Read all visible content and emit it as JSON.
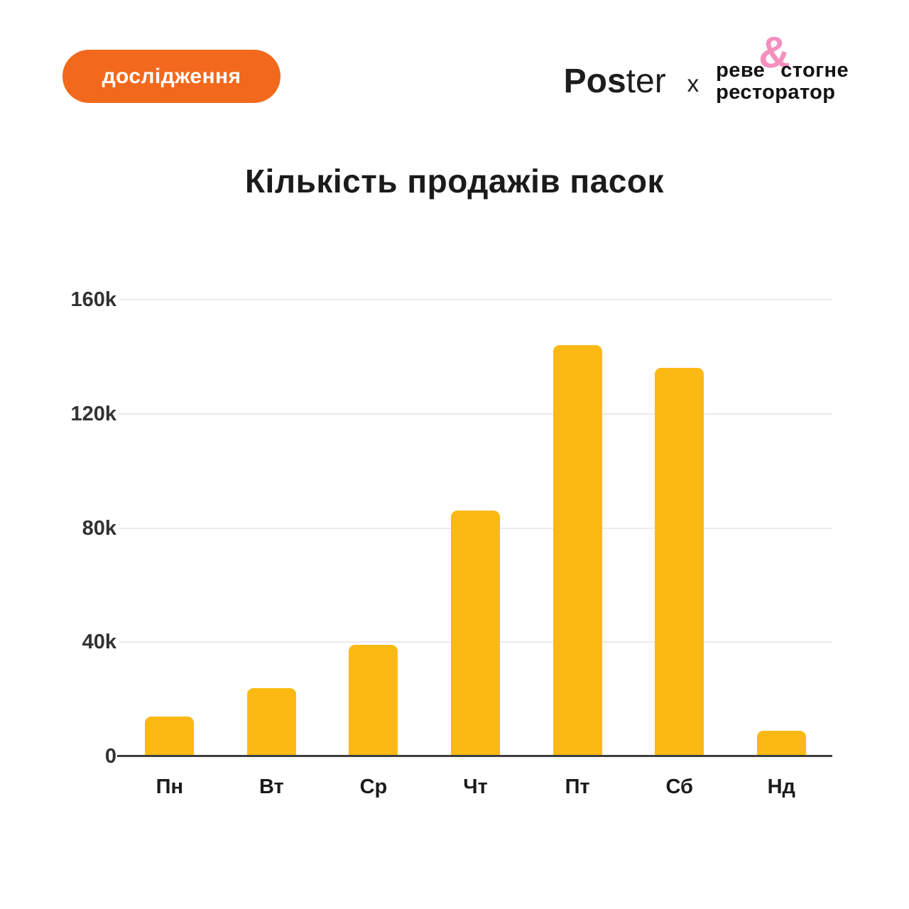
{
  "header": {
    "badge": {
      "label": "дослідження",
      "bg_color": "#F2691D",
      "text_color": "#FFFFFF"
    },
    "poster_logo": {
      "bold_part": "Pos",
      "light_part": "ter"
    },
    "collab_separator": "x",
    "partner_logo": {
      "line1_left": "реве",
      "amp": "&",
      "line1_right": "стогне",
      "line2": "ресторатор",
      "amp_color": "#F490BE"
    }
  },
  "chart_data": {
    "type": "bar",
    "title": "Кількість продажів пасок",
    "categories": [
      "Пн",
      "Вт",
      "Ср",
      "Чт",
      "Пт",
      "Сб",
      "Нд"
    ],
    "values": [
      14000,
      24000,
      39000,
      86000,
      144000,
      136000,
      9000
    ],
    "xlabel": "",
    "ylabel": "",
    "ylim": [
      0,
      160000
    ],
    "yticks": [
      {
        "value": 160000,
        "label": "160k"
      },
      {
        "value": 120000,
        "label": "120k"
      },
      {
        "value": 80000,
        "label": "80k"
      },
      {
        "value": 40000,
        "label": "40k"
      },
      {
        "value": 0,
        "label": "0"
      }
    ],
    "grid": true,
    "legend": false,
    "bar_color": "#FCB914",
    "gridline_color": "#EBEBEB",
    "axis_line_color": "#3E3E40"
  }
}
